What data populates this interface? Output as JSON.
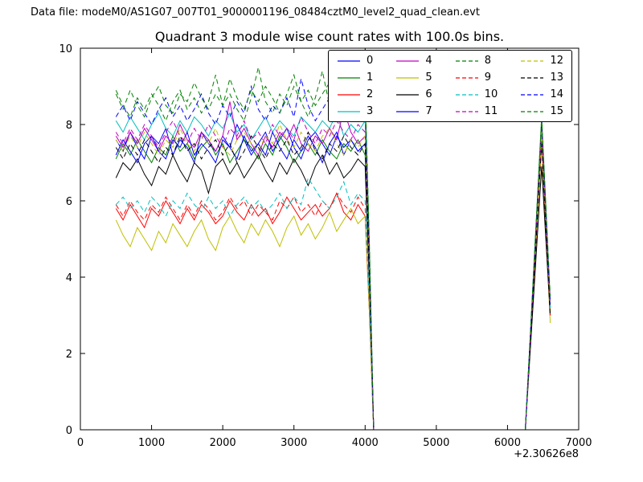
{
  "header": {
    "text": "Data file: modeM0/AS1G07_007T01_9000001196_08484cztM0_level2_quad_clean.evt"
  },
  "chart_data": {
    "type": "line",
    "title": "Quadrant 3 module wise count rates with 100.0s bins.",
    "xlim": [
      0,
      7000
    ],
    "ylim": [
      0,
      10
    ],
    "xticks": [
      "0",
      "1000",
      "2000",
      "3000",
      "4000",
      "5000",
      "6000",
      "7000"
    ],
    "yticks": [
      "0",
      "2",
      "4",
      "6",
      "8",
      "10"
    ],
    "x_offset_label": "+2.30626e8",
    "grid": false,
    "legend": {
      "position": "upper right",
      "columns": 4
    },
    "bins_x_start": 500,
    "bins_x_step": 100,
    "tail": {
      "drop": [
        [
          4060,
          0.55
        ],
        [
          4120,
          0
        ]
      ],
      "zero_until": 6250,
      "spike_x": 6480,
      "end_x": 6600
    },
    "series": [
      {
        "name": "0",
        "color": "#0000ff",
        "dash": false,
        "spike_peak": 7.9,
        "spike_end": 3.2,
        "values": [
          7.6,
          7.3,
          7.8,
          7.4,
          7.1,
          7.7,
          7.5,
          7.9,
          7.2,
          7.6,
          7.4,
          7.0,
          7.8,
          7.5,
          7.3,
          7.7,
          7.4,
          8.0,
          7.6,
          7.2,
          7.5,
          7.8,
          7.3,
          7.6,
          7.9,
          7.4,
          7.1,
          7.6,
          7.8,
          7.5,
          7.2,
          7.7,
          7.4,
          7.6,
          7.3,
          7.5
        ]
      },
      {
        "name": "1",
        "color": "#008000",
        "dash": false,
        "spike_peak": 7.7,
        "spike_end": 3.0,
        "values": [
          7.1,
          7.5,
          7.2,
          7.6,
          7.3,
          7.0,
          7.4,
          7.2,
          7.7,
          7.3,
          7.5,
          7.1,
          7.4,
          7.6,
          7.2,
          7.5,
          7.0,
          7.3,
          7.6,
          7.4,
          7.1,
          7.5,
          7.2,
          7.7,
          7.4,
          7.0,
          7.3,
          7.5,
          7.2,
          7.6,
          7.3,
          7.1,
          7.5,
          7.3,
          7.6,
          7.2
        ]
      },
      {
        "name": "2",
        "color": "#ff0000",
        "dash": false,
        "spike_peak": 7.6,
        "spike_end": 3.1,
        "values": [
          5.8,
          5.5,
          5.9,
          5.6,
          5.3,
          5.8,
          5.6,
          6.0,
          5.7,
          5.4,
          5.8,
          5.5,
          5.9,
          5.7,
          5.4,
          5.6,
          6.0,
          5.7,
          5.5,
          5.9,
          5.6,
          5.8,
          5.4,
          5.7,
          6.1,
          5.8,
          5.5,
          5.7,
          5.9,
          5.6,
          5.8,
          6.2,
          5.7,
          5.5,
          5.9,
          5.6
        ]
      },
      {
        "name": "3",
        "color": "#00bfbf",
        "dash": false,
        "spike_peak": 8.0,
        "spike_end": 3.3,
        "values": [
          8.1,
          7.8,
          8.2,
          7.9,
          7.6,
          8.0,
          8.3,
          7.9,
          7.7,
          8.1,
          7.8,
          8.2,
          8.0,
          7.7,
          8.1,
          7.9,
          8.3,
          7.8,
          8.0,
          7.6,
          7.9,
          8.2,
          7.8,
          8.1,
          7.9,
          7.7,
          8.2,
          8.0,
          7.8,
          8.1,
          7.9,
          8.3,
          7.7,
          8.0,
          7.8,
          8.1
        ]
      },
      {
        "name": "4",
        "color": "#bf00bf",
        "dash": false,
        "spike_peak": 7.8,
        "spike_end": 3.2,
        "values": [
          7.7,
          7.4,
          7.8,
          7.5,
          7.9,
          7.6,
          7.3,
          7.7,
          7.5,
          8.0,
          7.6,
          7.4,
          7.8,
          7.6,
          7.3,
          7.7,
          8.6,
          7.6,
          7.9,
          7.5,
          7.2,
          7.7,
          7.4,
          7.8,
          7.6,
          8.0,
          7.5,
          7.3,
          7.7,
          7.5,
          7.9,
          7.6,
          8.4,
          7.8,
          7.5,
          7.7
        ]
      },
      {
        "name": "5",
        "color": "#bfbf00",
        "dash": false,
        "spike_peak": 7.5,
        "spike_end": 2.8,
        "values": [
          5.5,
          5.1,
          4.8,
          5.3,
          5.0,
          4.7,
          5.2,
          4.9,
          5.4,
          5.1,
          4.8,
          5.2,
          5.5,
          5.0,
          4.7,
          5.3,
          5.6,
          5.2,
          4.9,
          5.4,
          5.1,
          5.5,
          5.2,
          4.8,
          5.3,
          5.6,
          5.1,
          5.4,
          5.0,
          5.3,
          5.7,
          5.2,
          5.5,
          5.8,
          5.4,
          5.6
        ]
      },
      {
        "name": "6",
        "color": "#000000",
        "dash": false,
        "spike_peak": 6.9,
        "spike_end": 3.0,
        "values": [
          6.6,
          7.0,
          6.8,
          7.1,
          6.7,
          6.4,
          6.9,
          6.7,
          7.2,
          6.8,
          6.5,
          7.0,
          6.8,
          6.2,
          6.9,
          7.1,
          6.7,
          7.0,
          6.6,
          6.9,
          7.2,
          6.8,
          6.5,
          7.0,
          6.7,
          7.1,
          6.8,
          6.4,
          6.9,
          7.2,
          6.7,
          7.0,
          6.6,
          6.8,
          7.1,
          6.9
        ]
      },
      {
        "name": "7",
        "color": "#0000ff",
        "dash": false,
        "spike_peak": 7.8,
        "spike_end": 3.1,
        "values": [
          7.2,
          7.6,
          7.3,
          7.0,
          7.5,
          7.7,
          7.3,
          7.1,
          7.6,
          7.4,
          7.8,
          7.2,
          7.5,
          7.3,
          7.0,
          7.6,
          7.4,
          7.1,
          7.7,
          7.3,
          7.5,
          7.2,
          7.8,
          7.4,
          7.1,
          7.6,
          7.3,
          7.7,
          7.4,
          7.0,
          7.5,
          7.8,
          7.2,
          7.6,
          7.3,
          7.5
        ]
      },
      {
        "name": "8",
        "color": "#008000",
        "dash": true,
        "spike_peak": 8.2,
        "spike_end": 3.4,
        "values": [
          8.9,
          8.5,
          8.2,
          8.7,
          8.4,
          8.8,
          8.5,
          8.1,
          8.6,
          8.9,
          8.4,
          8.7,
          8.3,
          8.6,
          9.3,
          8.5,
          8.8,
          8.4,
          8.1,
          8.7,
          9.5,
          8.6,
          8.3,
          8.8,
          8.5,
          9.0,
          8.6,
          8.2,
          8.7,
          9.4,
          8.5,
          8.8,
          9.6,
          8.6,
          8.3,
          8.7
        ]
      },
      {
        "name": "9",
        "color": "#ff0000",
        "dash": true,
        "spike_peak": 7.7,
        "spike_end": 3.0,
        "values": [
          5.9,
          5.6,
          6.0,
          5.7,
          5.5,
          5.9,
          5.7,
          6.1,
          5.8,
          5.5,
          5.9,
          5.6,
          6.0,
          5.8,
          5.5,
          5.7,
          6.1,
          5.8,
          6.0,
          5.6,
          5.9,
          5.7,
          5.5,
          6.0,
          5.8,
          6.1,
          5.7,
          5.9,
          5.6,
          6.0,
          5.8,
          6.2,
          5.9,
          5.7,
          6.1,
          5.8
        ]
      },
      {
        "name": "10",
        "color": "#00bfbf",
        "dash": true,
        "spike_peak": 7.9,
        "spike_end": 3.2,
        "values": [
          5.9,
          6.1,
          5.8,
          6.0,
          5.7,
          6.1,
          5.9,
          5.6,
          6.0,
          5.8,
          6.2,
          5.9,
          5.7,
          6.1,
          5.8,
          6.0,
          5.6,
          5.9,
          6.1,
          5.8,
          6.0,
          5.7,
          5.9,
          6.2,
          5.8,
          6.1,
          5.9,
          6.6,
          6.3,
          6.0,
          5.8,
          6.1,
          6.5,
          5.9,
          6.2,
          6.0
        ]
      },
      {
        "name": "11",
        "color": "#bf00bf",
        "dash": true,
        "spike_peak": 7.9,
        "spike_end": 3.3,
        "values": [
          7.8,
          7.5,
          7.9,
          7.6,
          8.0,
          7.7,
          7.4,
          7.8,
          8.1,
          7.7,
          7.5,
          7.9,
          7.6,
          8.0,
          7.7,
          7.4,
          7.9,
          7.7,
          8.1,
          7.6,
          7.8,
          7.5,
          8.0,
          7.7,
          7.9,
          7.6,
          8.2,
          7.8,
          7.5,
          7.9,
          7.7,
          8.1,
          7.8,
          7.6,
          8.0,
          7.8
        ]
      },
      {
        "name": "12",
        "color": "#bfbf00",
        "dash": true,
        "spike_peak": 7.8,
        "spike_end": 3.1,
        "values": [
          7.6,
          7.3,
          7.7,
          7.4,
          7.8,
          7.5,
          7.2,
          7.6,
          7.4,
          7.9,
          7.5,
          7.3,
          7.7,
          7.5,
          7.9,
          7.4,
          7.2,
          7.6,
          7.8,
          7.5,
          7.3,
          7.7,
          7.5,
          8.0,
          7.6,
          7.4,
          7.8,
          7.5,
          7.3,
          7.7,
          7.9,
          7.5,
          7.2,
          7.6,
          7.4,
          7.7
        ]
      },
      {
        "name": "13",
        "color": "#000000",
        "dash": true,
        "spike_peak": 7.5,
        "spike_end": 3.0,
        "values": [
          7.4,
          7.1,
          7.5,
          7.2,
          7.6,
          7.3,
          7.0,
          7.4,
          7.2,
          7.7,
          7.3,
          7.5,
          7.1,
          7.4,
          7.6,
          7.2,
          7.5,
          7.0,
          7.3,
          7.7,
          7.4,
          7.1,
          7.5,
          7.3,
          7.6,
          7.2,
          7.4,
          7.8,
          7.3,
          7.1,
          7.5,
          7.3,
          7.7,
          7.4,
          7.2,
          7.5
        ]
      },
      {
        "name": "14",
        "color": "#0000ff",
        "dash": true,
        "spike_peak": 8.1,
        "spike_end": 3.3,
        "values": [
          8.2,
          8.5,
          8.1,
          8.6,
          8.3,
          8.0,
          8.4,
          8.7,
          8.2,
          8.5,
          8.1,
          8.4,
          8.8,
          8.3,
          8.0,
          8.5,
          8.2,
          8.6,
          8.3,
          9.0,
          8.4,
          8.1,
          8.5,
          8.3,
          8.7,
          8.2,
          9.2,
          8.5,
          8.1,
          8.4,
          8.7,
          8.3,
          9.4,
          8.6,
          8.2,
          8.5
        ]
      },
      {
        "name": "15",
        "color": "#008000",
        "dash": true,
        "spike_peak": 8.2,
        "spike_end": 3.5,
        "values": [
          8.8,
          8.4,
          8.9,
          8.5,
          8.2,
          8.7,
          9.0,
          8.5,
          8.3,
          8.8,
          8.6,
          9.1,
          8.7,
          8.4,
          8.8,
          8.5,
          9.2,
          8.7,
          8.4,
          8.9,
          8.6,
          9.0,
          8.7,
          8.3,
          8.8,
          9.3,
          8.6,
          8.9,
          8.5,
          8.8,
          9.1,
          8.7,
          9.6,
          8.8,
          8.5,
          8.9
        ]
      }
    ]
  }
}
